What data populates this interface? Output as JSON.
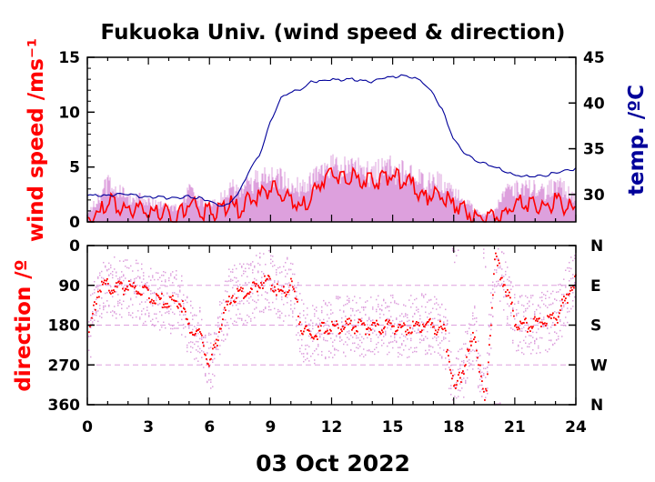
{
  "title": "Fukuoka Univ. (wind speed & direction)",
  "date_label": "03 Oct 2022",
  "colors": {
    "speed_line": "#ff0000",
    "gust_fill": "#dda0dd",
    "temperature_line": "#00009a",
    "direction_scatter": "#ff0000",
    "direction_sample_scatter": "#dda0dd",
    "direction_gridline": "#dda0dd",
    "axis": "#000000"
  },
  "chart_data": [
    {
      "type": "line",
      "panel": "wind speed & temperature",
      "xlim": [
        0,
        24
      ],
      "x_ticks": [
        "0",
        "3",
        "6",
        "9",
        "12",
        "15",
        "18",
        "21",
        "24"
      ],
      "ylabel": "wind speed /ms⁻¹",
      "ylim": [
        0,
        15
      ],
      "y_ticks": [
        "0",
        "5",
        "10",
        "15"
      ],
      "y2label": "temp. /ºC",
      "y2lim": [
        27,
        45
      ],
      "y2_ticks": [
        "30",
        "35",
        "40",
        "45"
      ],
      "grid": false,
      "series": [
        {
          "role": "wind speed (mean)",
          "axis": "left",
          "x": [
            0,
            0.5,
            1,
            1.5,
            2,
            2.5,
            3,
            3.5,
            4,
            4.5,
            5,
            5.5,
            6,
            6.5,
            7,
            7.5,
            8,
            8.5,
            9,
            9.5,
            10,
            10.5,
            11,
            11.5,
            12,
            12.5,
            13,
            13.5,
            14,
            14.5,
            15,
            15.5,
            16,
            16.5,
            17,
            17.5,
            18,
            18.5,
            19,
            19.5,
            20,
            20.5,
            21,
            21.5,
            22,
            22.5,
            23,
            23.5,
            24
          ],
          "values": [
            0.4,
            0.5,
            2.0,
            1.6,
            1.0,
            1.2,
            1.0,
            0.8,
            0.7,
            0.6,
            1.8,
            1.0,
            0.9,
            1.0,
            1.6,
            1.2,
            2.0,
            2.4,
            3.2,
            2.4,
            2.0,
            1.4,
            2.4,
            3.6,
            4.2,
            4.3,
            4.2,
            3.8,
            3.6,
            4.0,
            4.2,
            3.6,
            3.4,
            2.2,
            2.6,
            2.2,
            1.5,
            1.0,
            0.6,
            0.3,
            0.5,
            1.0,
            1.5,
            1.8,
            1.6,
            1.3,
            1.8,
            1.4,
            1.0
          ]
        },
        {
          "role": "wind speed (gust envelope)",
          "axis": "left",
          "x": [
            0,
            0.5,
            1,
            1.5,
            2,
            2.5,
            3,
            3.5,
            4,
            4.5,
            5,
            5.5,
            6,
            6.5,
            7,
            7.5,
            8,
            8.5,
            9,
            9.5,
            10,
            10.5,
            11,
            11.5,
            12,
            12.5,
            13,
            13.5,
            14,
            14.5,
            15,
            15.5,
            16,
            16.5,
            17,
            17.5,
            18,
            18.5,
            19,
            19.5,
            20,
            20.5,
            21,
            21.5,
            22,
            22.5,
            23,
            23.5,
            24
          ],
          "values": [
            1.2,
            2.5,
            4.5,
            3.8,
            2.6,
            3.0,
            2.4,
            2.0,
            1.8,
            1.6,
            3.6,
            2.4,
            2.0,
            2.6,
            4.0,
            3.6,
            4.4,
            5.0,
            5.6,
            5.0,
            4.6,
            4.0,
            5.0,
            5.8,
            6.2,
            6.2,
            6.2,
            5.8,
            5.6,
            6.0,
            6.2,
            5.8,
            5.6,
            4.6,
            4.8,
            4.4,
            3.4,
            2.6,
            1.6,
            0.8,
            1.2,
            3.4,
            3.8,
            4.0,
            3.8,
            3.4,
            4.4,
            3.6,
            2.6
          ]
        },
        {
          "role": "temperature",
          "axis": "right",
          "x": [
            0,
            0.5,
            1,
            1.5,
            2,
            2.5,
            3,
            3.5,
            4,
            4.5,
            5,
            5.5,
            6,
            6.5,
            7,
            7.5,
            8,
            8.5,
            9,
            9.5,
            10,
            10.5,
            11,
            11.5,
            12,
            12.5,
            13,
            13.5,
            14,
            14.5,
            15,
            15.5,
            16,
            16.5,
            17,
            17.5,
            18,
            18.5,
            19,
            19.5,
            20,
            20.5,
            21,
            21.5,
            22,
            22.5,
            23,
            23.5,
            24
          ],
          "values": [
            29.9,
            29.9,
            29.9,
            30.0,
            30.0,
            29.8,
            29.7,
            29.7,
            29.6,
            29.6,
            29.8,
            29.6,
            29.3,
            28.8,
            29.0,
            30.5,
            32.8,
            34.5,
            38.0,
            40.5,
            41.2,
            41.5,
            42.3,
            42.4,
            42.6,
            42.5,
            42.6,
            42.4,
            42.3,
            42.7,
            42.8,
            43.0,
            42.8,
            42.2,
            41.0,
            39.0,
            36.0,
            34.6,
            33.8,
            33.4,
            33.0,
            32.6,
            32.1,
            32.0,
            32.0,
            32.1,
            32.4,
            32.6,
            32.8
          ]
        }
      ]
    },
    {
      "type": "scatter",
      "panel": "wind direction",
      "xlim": [
        0,
        24
      ],
      "x_ticks": [
        "0",
        "3",
        "6",
        "9",
        "12",
        "15",
        "18",
        "21",
        "24"
      ],
      "xlabel": "03 Oct 2022",
      "ylabel": "direction /º",
      "ylim": [
        360,
        0
      ],
      "y_ticks": [
        "0",
        "90",
        "180",
        "270",
        "360"
      ],
      "y2_ticks": [
        "N",
        "E",
        "S",
        "W",
        "N"
      ],
      "grid": "dashed at 90, 180, 270",
      "series": [
        {
          "role": "mean direction",
          "x": [
            0,
            0.5,
            1,
            1.5,
            2,
            2.5,
            3,
            3.5,
            4,
            4.5,
            5,
            5.5,
            6,
            6.5,
            7,
            7.5,
            8,
            8.5,
            9,
            9.5,
            10,
            10.5,
            11,
            11.5,
            12,
            12.5,
            13,
            13.5,
            14,
            14.5,
            15,
            15.5,
            16,
            16.5,
            17,
            17.5,
            18,
            18.5,
            19,
            19.5,
            20,
            20.5,
            21,
            21.5,
            22,
            22.5,
            23,
            23.5,
            24
          ],
          "values": [
            210,
            100,
            90,
            95,
            90,
            100,
            110,
            120,
            130,
            120,
            190,
            200,
            270,
            180,
            110,
            110,
            100,
            80,
            80,
            110,
            80,
            190,
            200,
            190,
            185,
            180,
            180,
            185,
            180,
            180,
            180,
            185,
            180,
            175,
            180,
            190,
            330,
            270,
            200,
            360,
            30,
            90,
            170,
            180,
            175,
            170,
            160,
            120,
            60
          ]
        }
      ]
    }
  ]
}
